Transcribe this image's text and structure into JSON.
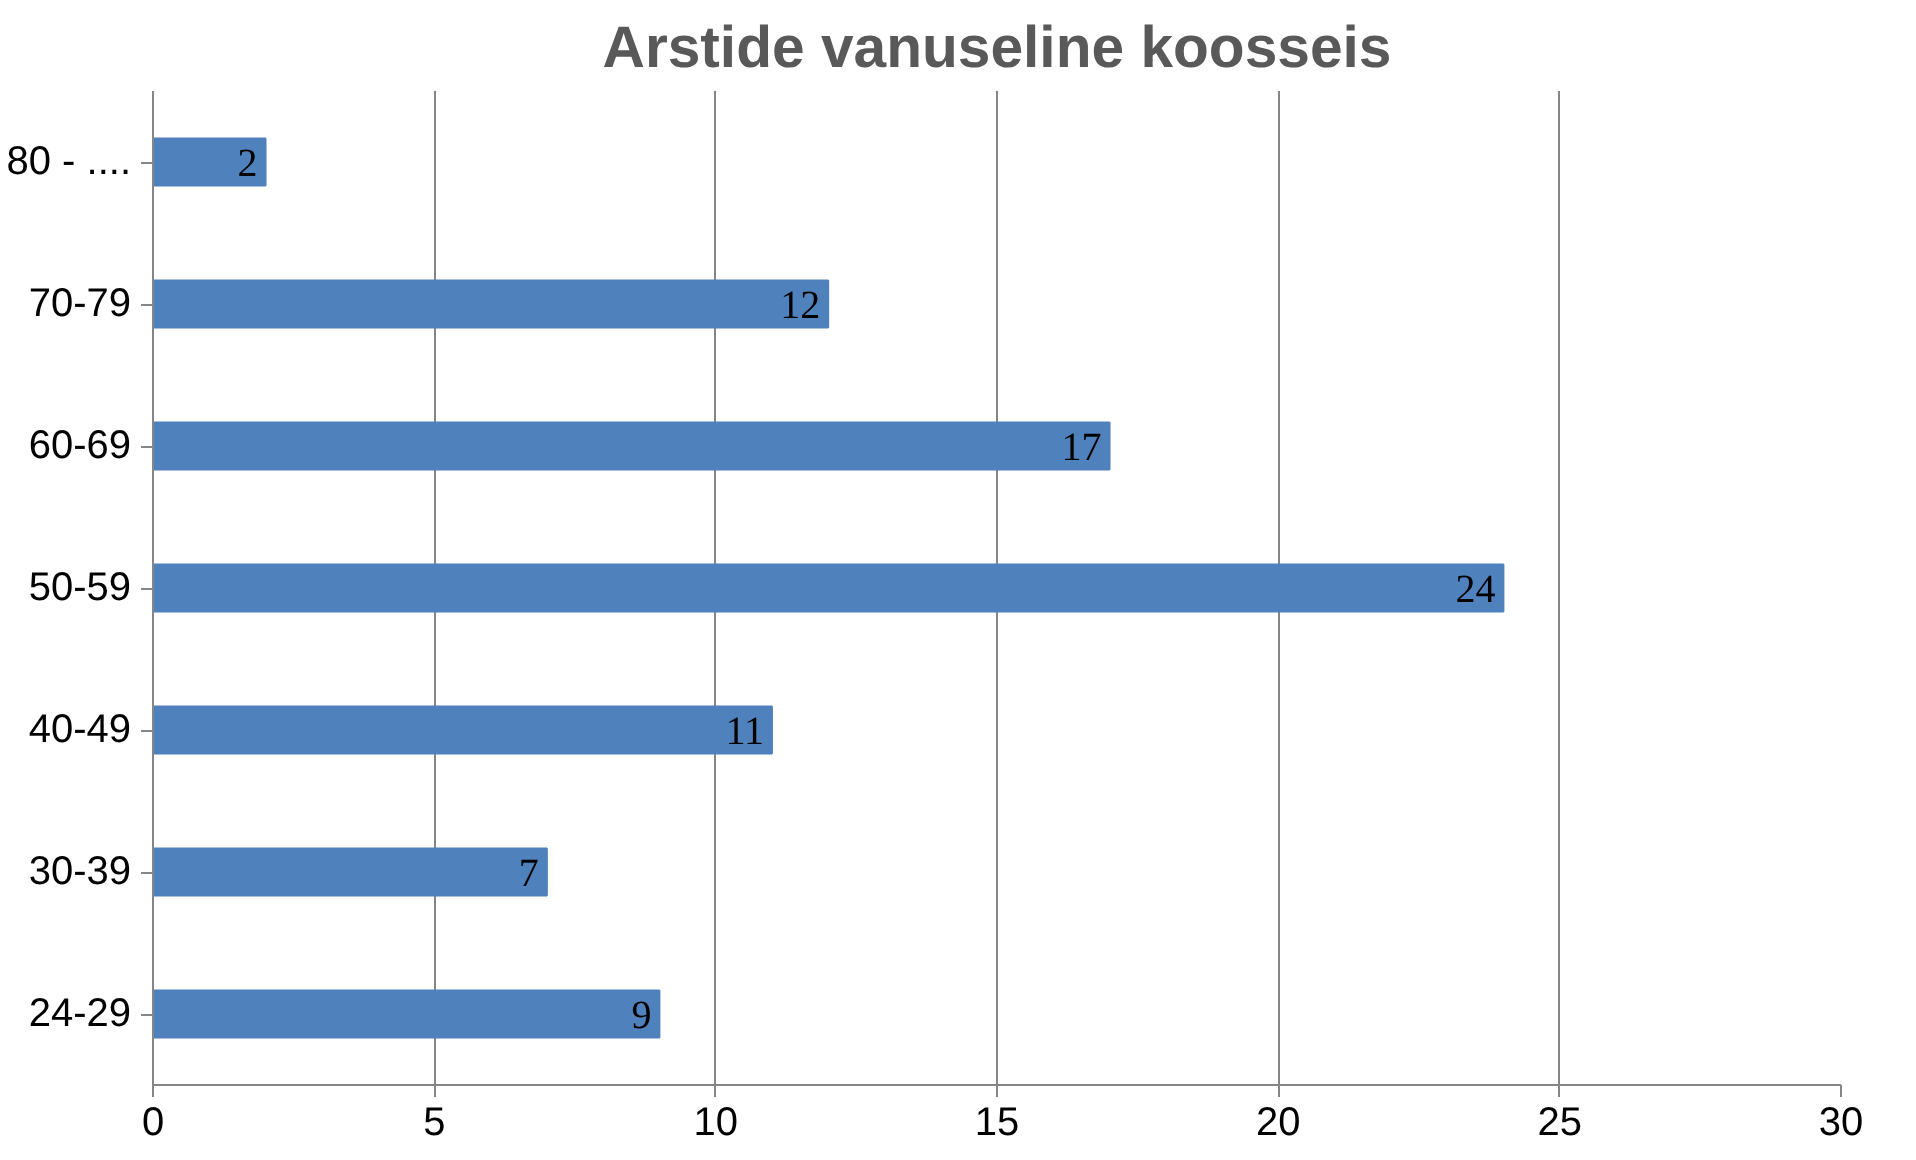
{
  "chart_data": {
    "type": "bar",
    "orientation": "horizontal",
    "title": "Arstide vanuseline koosseis",
    "categories": [
      "80 - ....",
      "70-79",
      "60-69",
      "50-59",
      "40-49",
      "30-39",
      "24-29"
    ],
    "values": [
      2,
      12,
      17,
      24,
      11,
      7,
      9
    ],
    "color": "#4f81bd",
    "xlim": [
      0,
      30
    ],
    "xticks": [
      0,
      5,
      10,
      15,
      20,
      25,
      30
    ],
    "grid": "x",
    "data_labels": true
  }
}
